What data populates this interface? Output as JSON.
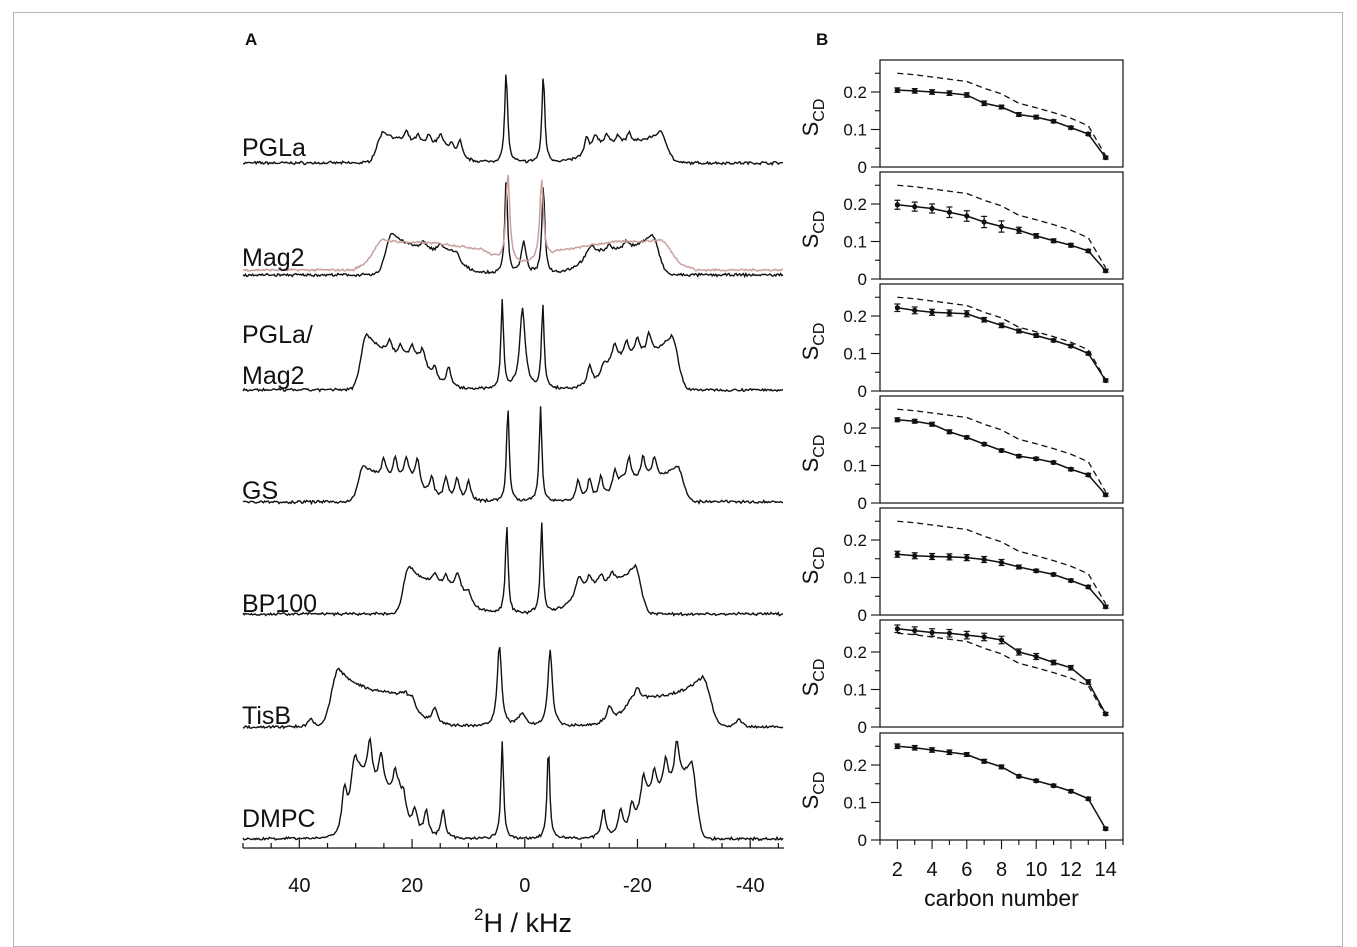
{
  "panels": {
    "a_letter": "A",
    "b_letter": "B"
  },
  "chart_data": [
    {
      "type": "line",
      "panel": "A",
      "xlabel_sup": "2",
      "xlabel": "H / kHz",
      "xlim": [
        50,
        -46
      ],
      "x_ticks": [
        40,
        20,
        0,
        -20,
        -40
      ],
      "x_tick_labels": [
        "40",
        "20",
        "0",
        "-20",
        "-40"
      ],
      "series": [
        {
          "name": "PGLa",
          "label_lines": [
            "PGLa"
          ],
          "color": "#111111",
          "horns": [
            {
              "x": 25,
              "h": 0.31,
              "w": 1.5
            },
            {
              "x": -24,
              "h": 0.31,
              "w": 1.6
            }
          ],
          "peaks": [
            {
              "x": 3.3,
              "h": 0.92,
              "w": 0.3
            },
            {
              "x": -3.3,
              "h": 0.88,
              "w": 0.3
            },
            {
              "x": 21,
              "h": 0.1,
              "w": 0.45
            },
            {
              "x": 19,
              "h": 0.08,
              "w": 0.45
            },
            {
              "x": 17,
              "h": 0.09,
              "w": 0.45
            },
            {
              "x": 15,
              "h": 0.1,
              "w": 0.45
            },
            {
              "x": 13,
              "h": 0.11,
              "w": 0.45
            },
            {
              "x": 11.5,
              "h": 0.17,
              "w": 0.45
            },
            {
              "x": -11,
              "h": 0.17,
              "w": 0.45
            },
            {
              "x": -12.5,
              "h": 0.11,
              "w": 0.45
            },
            {
              "x": -14.5,
              "h": 0.1,
              "w": 0.45
            },
            {
              "x": -16.5,
              "h": 0.09,
              "w": 0.45
            },
            {
              "x": -18.5,
              "h": 0.1,
              "w": 0.45
            }
          ]
        },
        {
          "name": "Mag2",
          "label_lines": [
            "Mag2"
          ],
          "color": "#111111",
          "horns": [
            {
              "x": 23.5,
              "h": 0.42,
              "w": 1.5
            },
            {
              "x": -22.5,
              "h": 0.4,
              "w": 1.6
            }
          ],
          "peaks": [
            {
              "x": 3.3,
              "h": 0.95,
              "w": 0.3
            },
            {
              "x": -3.3,
              "h": 0.9,
              "w": 0.3
            },
            {
              "x": 0.2,
              "h": 0.32,
              "w": 0.5
            },
            {
              "x": 18,
              "h": 0.07,
              "w": 0.45
            },
            {
              "x": 15,
              "h": 0.07,
              "w": 0.45
            },
            {
              "x": 12,
              "h": 0.07,
              "w": 0.45
            },
            {
              "x": -12,
              "h": 0.07,
              "w": 0.45
            },
            {
              "x": -15,
              "h": 0.07,
              "w": 0.45
            },
            {
              "x": -18,
              "h": 0.07,
              "w": 0.45
            }
          ]
        },
        {
          "name": "PGLa/Mag2",
          "label_lines": [
            "PGLa/",
            "Mag2"
          ],
          "color": "#111111",
          "horns": [
            {
              "x": 28,
              "h": 0.56,
              "w": 1.4
            },
            {
              "x": -26,
              "h": 0.54,
              "w": 1.5
            }
          ],
          "peaks": [
            {
              "x": 4,
              "h": 0.88,
              "w": 0.28
            },
            {
              "x": -3.2,
              "h": 0.84,
              "w": 0.28
            },
            {
              "x": 0.4,
              "h": 0.8,
              "w": 0.6
            },
            {
              "x": 24,
              "h": 0.12,
              "w": 0.45
            },
            {
              "x": 22,
              "h": 0.1,
              "w": 0.45
            },
            {
              "x": 20,
              "h": 0.12,
              "w": 0.45
            },
            {
              "x": 18,
              "h": 0.1,
              "w": 0.45
            },
            {
              "x": 16,
              "h": 0.12,
              "w": 0.45
            },
            {
              "x": 13.5,
              "h": 0.2,
              "w": 0.45
            },
            {
              "x": -11.5,
              "h": 0.2,
              "w": 0.45
            },
            {
              "x": -14,
              "h": 0.12,
              "w": 0.45
            },
            {
              "x": -16,
              "h": 0.14,
              "w": 0.45
            },
            {
              "x": -18,
              "h": 0.16,
              "w": 0.45
            },
            {
              "x": -20,
              "h": 0.18,
              "w": 0.45
            },
            {
              "x": -22,
              "h": 0.2,
              "w": 0.45
            }
          ]
        },
        {
          "name": "GS",
          "label_lines": [
            "GS"
          ],
          "color": "#111111",
          "horns": [
            {
              "x": 28.5,
              "h": 0.36,
              "w": 1.3
            },
            {
              "x": -27,
              "h": 0.36,
              "w": 1.4
            }
          ],
          "peaks": [
            {
              "x": 3,
              "h": 0.96,
              "w": 0.28
            },
            {
              "x": -2.8,
              "h": 0.95,
              "w": 0.28
            },
            {
              "x": 25,
              "h": 0.18,
              "w": 0.45
            },
            {
              "x": 23,
              "h": 0.2,
              "w": 0.45
            },
            {
              "x": 21,
              "h": 0.22,
              "w": 0.45
            },
            {
              "x": 19,
              "h": 0.24,
              "w": 0.45
            },
            {
              "x": 16.5,
              "h": 0.2,
              "w": 0.45
            },
            {
              "x": 14,
              "h": 0.22,
              "w": 0.45
            },
            {
              "x": 12,
              "h": 0.22,
              "w": 0.45
            },
            {
              "x": 10,
              "h": 0.2,
              "w": 0.45
            },
            {
              "x": -9.5,
              "h": 0.2,
              "w": 0.45
            },
            {
              "x": -11.5,
              "h": 0.2,
              "w": 0.45
            },
            {
              "x": -13.5,
              "h": 0.2,
              "w": 0.45
            },
            {
              "x": -16,
              "h": 0.2,
              "w": 0.45
            },
            {
              "x": -18.5,
              "h": 0.22,
              "w": 0.45
            },
            {
              "x": -21,
              "h": 0.22,
              "w": 0.45
            },
            {
              "x": -23,
              "h": 0.2,
              "w": 0.45
            }
          ]
        },
        {
          "name": "BP100",
          "label_lines": [
            "BP100"
          ],
          "color": "#111111",
          "horns": [
            {
              "x": 20.5,
              "h": 0.48,
              "w": 1.3
            },
            {
              "x": -19.5,
              "h": 0.48,
              "w": 1.4
            }
          ],
          "peaks": [
            {
              "x": 3.2,
              "h": 0.9,
              "w": 0.28
            },
            {
              "x": -3,
              "h": 0.9,
              "w": 0.28
            },
            {
              "x": 16,
              "h": 0.1,
              "w": 0.45
            },
            {
              "x": 14,
              "h": 0.1,
              "w": 0.45
            },
            {
              "x": 12,
              "h": 0.12,
              "w": 0.45
            },
            {
              "x": 10,
              "h": 0.1,
              "w": 0.45
            },
            {
              "x": -9.5,
              "h": 0.12,
              "w": 0.45
            },
            {
              "x": -11.5,
              "h": 0.1,
              "w": 0.45
            },
            {
              "x": -13.5,
              "h": 0.1,
              "w": 0.45
            },
            {
              "x": -15.5,
              "h": 0.1,
              "w": 0.45
            }
          ]
        },
        {
          "name": "TisB",
          "label_lines": [
            "TisB"
          ],
          "color": "#111111",
          "horns": [
            {
              "x": 33,
              "h": 0.58,
              "w": 1.7
            },
            {
              "x": -31.5,
              "h": 0.5,
              "w": 1.8
            }
          ],
          "peaks": [
            {
              "x": 4.5,
              "h": 0.82,
              "w": 0.45
            },
            {
              "x": -4.5,
              "h": 0.78,
              "w": 0.45
            },
            {
              "x": 0.5,
              "h": 0.12,
              "w": 0.8
            },
            {
              "x": 16,
              "h": 0.15,
              "w": 0.5
            },
            {
              "x": -15,
              "h": 0.15,
              "w": 0.5
            },
            {
              "x": 20,
              "h": 0.1,
              "w": 0.5
            },
            {
              "x": -20,
              "h": 0.1,
              "w": 0.5
            },
            {
              "x": 38,
              "h": 0.08,
              "w": 0.6
            },
            {
              "x": -38,
              "h": 0.08,
              "w": 0.6
            }
          ]
        },
        {
          "name": "DMPC",
          "label_lines": [
            "DMPC"
          ],
          "color": "#111111",
          "horns": [
            {
              "x": 30,
              "h": 0.78,
              "w": 1.1
            },
            {
              "x": -29.5,
              "h": 0.76,
              "w": 1.2
            }
          ],
          "peaks": [
            {
              "x": 4,
              "h": 0.98,
              "w": 0.28
            },
            {
              "x": -4.2,
              "h": 0.93,
              "w": 0.28
            },
            {
              "x": 32,
              "h": 0.5,
              "w": 0.6
            },
            {
              "x": 27.5,
              "h": 0.42,
              "w": 0.5
            },
            {
              "x": 25.5,
              "h": 0.35,
              "w": 0.5
            },
            {
              "x": 23,
              "h": 0.22,
              "w": 0.45
            },
            {
              "x": 21.5,
              "h": 0.2,
              "w": 0.45
            },
            {
              "x": 19.5,
              "h": 0.22,
              "w": 0.45
            },
            {
              "x": 17.5,
              "h": 0.25,
              "w": 0.45
            },
            {
              "x": 14.5,
              "h": 0.28,
              "w": 0.45
            },
            {
              "x": -14,
              "h": 0.28,
              "w": 0.45
            },
            {
              "x": -17,
              "h": 0.25,
              "w": 0.45
            },
            {
              "x": -19,
              "h": 0.22,
              "w": 0.45
            },
            {
              "x": -21,
              "h": 0.2,
              "w": 0.45
            },
            {
              "x": -23,
              "h": 0.22,
              "w": 0.45
            },
            {
              "x": -25,
              "h": 0.3,
              "w": 0.5
            },
            {
              "x": -27,
              "h": 0.42,
              "w": 0.5
            }
          ]
        }
      ],
      "overlay": {
        "on_series": "Mag2",
        "color": "#c9a0a0",
        "horns": [
          {
            "x": 25,
            "h": 0.26,
            "w": 2.5
          },
          {
            "x": -24,
            "h": 0.24,
            "w": 2.6
          }
        ],
        "broad": [
          {
            "x": 16,
            "h": 0.1,
            "w": 7
          },
          {
            "x": -16,
            "h": 0.12,
            "w": 7
          }
        ],
        "peaks": [
          {
            "x": 3,
            "h": 0.88,
            "w": 0.4
          },
          {
            "x": -3,
            "h": 0.8,
            "w": 0.4
          }
        ]
      }
    },
    {
      "type": "line",
      "panel": "B",
      "xlabel": "carbon number",
      "ylabel_main": "S",
      "ylabel_sub": "CD",
      "xlim": [
        1,
        15
      ],
      "ylim": [
        0,
        0.28
      ],
      "x_ticks": [
        2,
        4,
        6,
        8,
        10,
        12,
        14
      ],
      "y_ticks": [
        0,
        0.1,
        0.2
      ],
      "y_tick_labels": [
        "0",
        "0.1",
        "0.2"
      ],
      "x": [
        2,
        3,
        4,
        5,
        6,
        7,
        8,
        9,
        10,
        11,
        12,
        13,
        14
      ],
      "reference": {
        "style": "dashed",
        "values": [
          0.25,
          0.246,
          0.24,
          0.234,
          0.228,
          0.21,
          0.195,
          0.17,
          0.158,
          0.145,
          0.13,
          0.11,
          0.03
        ]
      },
      "panels": [
        {
          "values": [
            0.205,
            0.203,
            0.2,
            0.197,
            0.192,
            0.17,
            0.16,
            0.14,
            0.133,
            0.122,
            0.105,
            0.088,
            0.025
          ],
          "errors": [
            0.006,
            0.006,
            0.006,
            0.006,
            0.006,
            0.006,
            0.005,
            0.005,
            0.005,
            0.004,
            0.004,
            0.004,
            0.004
          ]
        },
        {
          "values": [
            0.198,
            0.193,
            0.188,
            0.178,
            0.168,
            0.152,
            0.14,
            0.13,
            0.115,
            0.102,
            0.09,
            0.075,
            0.022
          ],
          "errors": [
            0.012,
            0.012,
            0.012,
            0.014,
            0.014,
            0.015,
            0.015,
            0.008,
            0.006,
            0.005,
            0.005,
            0.004,
            0.004
          ]
        },
        {
          "values": [
            0.222,
            0.215,
            0.21,
            0.208,
            0.206,
            0.19,
            0.175,
            0.16,
            0.148,
            0.135,
            0.12,
            0.1,
            0.028
          ],
          "errors": [
            0.01,
            0.009,
            0.008,
            0.008,
            0.008,
            0.006,
            0.006,
            0.005,
            0.005,
            0.004,
            0.004,
            0.004,
            0.004
          ]
        },
        {
          "values": [
            0.222,
            0.218,
            0.21,
            0.19,
            0.175,
            0.157,
            0.14,
            0.125,
            0.118,
            0.108,
            0.09,
            0.075,
            0.022
          ],
          "errors": [
            0.005,
            0.005,
            0.005,
            0.005,
            0.004,
            0.004,
            0.004,
            0.004,
            0.004,
            0.004,
            0.004,
            0.004,
            0.004
          ]
        },
        {
          "values": [
            0.162,
            0.158,
            0.156,
            0.155,
            0.153,
            0.148,
            0.14,
            0.128,
            0.118,
            0.108,
            0.092,
            0.075,
            0.022
          ],
          "errors": [
            0.008,
            0.008,
            0.008,
            0.008,
            0.008,
            0.008,
            0.008,
            0.005,
            0.004,
            0.004,
            0.004,
            0.004,
            0.004
          ]
        },
        {
          "values": [
            0.262,
            0.257,
            0.252,
            0.25,
            0.245,
            0.24,
            0.232,
            0.2,
            0.188,
            0.172,
            0.158,
            0.12,
            0.035
          ],
          "errors": [
            0.01,
            0.01,
            0.01,
            0.01,
            0.01,
            0.01,
            0.01,
            0.008,
            0.008,
            0.006,
            0.006,
            0.006,
            0.004
          ]
        },
        {
          "values": [
            0.25,
            0.246,
            0.24,
            0.234,
            0.228,
            0.21,
            0.195,
            0.17,
            0.158,
            0.145,
            0.13,
            0.11,
            0.03
          ],
          "errors": [
            0.006,
            0.006,
            0.006,
            0.006,
            0.005,
            0.005,
            0.005,
            0.004,
            0.004,
            0.004,
            0.004,
            0.004,
            0.004
          ],
          "hide_reference": true
        }
      ]
    }
  ]
}
